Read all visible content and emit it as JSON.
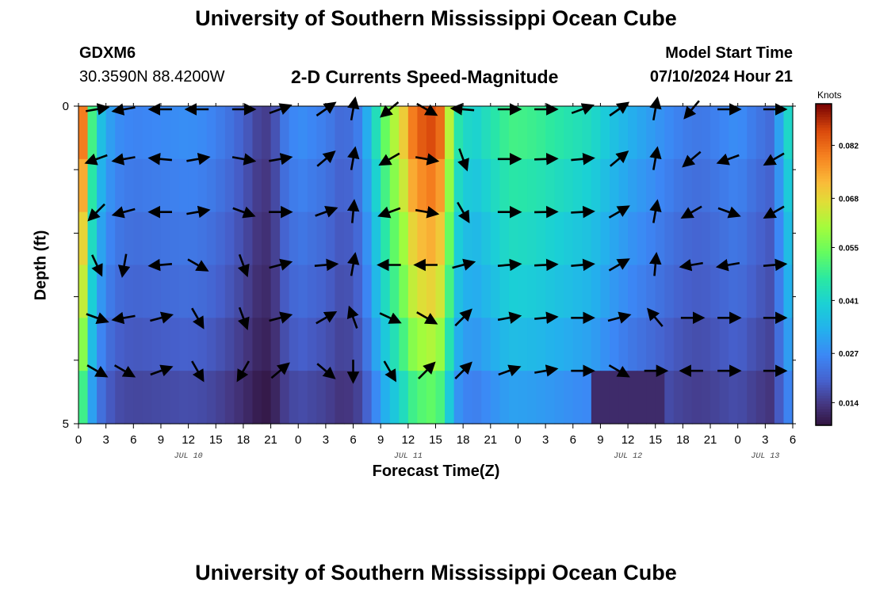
{
  "header": {
    "title": "University of Southern Mississippi Ocean Cube",
    "station_id": "GDXM6",
    "station_coords": "30.3590N  88.4200W",
    "product_title": "2-D Currents Speed-Magnitude",
    "model_start_label": "Model Start Time",
    "model_start_value": "07/10/2024 Hour 21"
  },
  "footer": {
    "title": "University of Southern Mississippi Ocean Cube"
  },
  "chart_data": {
    "type": "heatmap",
    "title": "2-D Currents Speed-Magnitude",
    "xlabel": "Forecast Time(Z)",
    "ylabel": "Depth (ft)",
    "colorbar_label": "Knots",
    "x_tick_labels": [
      "0",
      "3",
      "6",
      "9",
      "12",
      "15",
      "18",
      "21",
      "0",
      "3",
      "6",
      "9",
      "12",
      "15",
      "18",
      "21",
      "0",
      "3",
      "6",
      "9",
      "12",
      "15",
      "18",
      "21",
      "0",
      "3",
      "6"
    ],
    "date_labels": [
      {
        "label": "JUL 10",
        "hour": 12
      },
      {
        "label": "JUL 11",
        "hour": 36
      },
      {
        "label": "JUL 12",
        "hour": 60
      },
      {
        "label": "JUL 13",
        "hour": 75
      }
    ],
    "y_tick_labels": [
      "0",
      "5"
    ],
    "ylim": [
      0,
      5
    ],
    "xlim_hours": [
      0,
      78
    ],
    "colorbar_ticks": [
      0.014,
      0.027,
      0.041,
      0.055,
      0.068,
      0.082
    ],
    "colorbar_range": [
      0.008,
      0.093
    ],
    "depth_rows": 6,
    "speed_profile_hours": [
      0,
      0.5,
      1,
      1.5,
      2,
      3,
      4,
      6,
      9,
      12,
      14,
      16,
      18,
      19.5,
      20.5,
      21.5,
      22.5,
      24,
      27,
      29,
      30.5,
      31.5,
      32.5,
      33.5,
      34.5,
      35.5,
      36.5,
      37.5,
      38.5,
      39.5,
      40.5,
      41.5,
      43,
      45,
      47,
      48,
      50,
      52,
      54,
      56,
      58,
      60,
      62,
      64,
      66,
      68,
      70,
      72,
      74,
      75.5,
      76.5,
      77.5,
      78
    ],
    "speed_profile": [
      0.08,
      0.08,
      0.065,
      0.05,
      0.04,
      0.033,
      0.028,
      0.026,
      0.027,
      0.028,
      0.027,
      0.024,
      0.02,
      0.016,
      0.015,
      0.018,
      0.024,
      0.028,
      0.025,
      0.021,
      0.025,
      0.033,
      0.044,
      0.054,
      0.062,
      0.07,
      0.08,
      0.084,
      0.086,
      0.082,
      0.063,
      0.046,
      0.04,
      0.045,
      0.05,
      0.05,
      0.049,
      0.047,
      0.045,
      0.043,
      0.038,
      0.034,
      0.031,
      0.028,
      0.025,
      0.024,
      0.026,
      0.028,
      0.024,
      0.022,
      0.031,
      0.042,
      0.045
    ],
    "depth_factors": [
      1.0,
      0.93,
      0.86,
      0.8,
      0.72,
      0.62
    ],
    "vectors_note": "Black arrows show current direction at each 3-hour step for each depth row (not all hours drawn)",
    "vector_hours": [
      2,
      5,
      9,
      13,
      18,
      22,
      27,
      30,
      34,
      38,
      42,
      47,
      51,
      55,
      59,
      63,
      67,
      71,
      76
    ],
    "vector_angles_deg": [
      [
        10,
        190,
        180,
        180,
        0,
        20,
        35,
        80,
        220,
        330,
        175,
        0,
        0,
        20,
        35,
        80,
        230,
        0,
        0
      ],
      [
        200,
        190,
        175,
        10,
        350,
        10,
        40,
        80,
        210,
        350,
        290,
        0,
        2,
        5,
        40,
        80,
        220,
        200,
        210
      ],
      [
        225,
        195,
        180,
        10,
        340,
        0,
        20,
        85,
        200,
        350,
        300,
        0,
        1,
        3,
        30,
        80,
        210,
        340,
        210
      ],
      [
        295,
        260,
        185,
        330,
        290,
        15,
        5,
        80,
        180,
        180,
        15,
        5,
        3,
        5,
        30,
        85,
        190,
        190,
        5
      ],
      [
        340,
        190,
        15,
        300,
        290,
        15,
        30,
        110,
        335,
        330,
        45,
        10,
        5,
        0,
        15,
        130,
        0,
        0,
        0
      ],
      [
        330,
        330,
        20,
        300,
        240,
        40,
        320,
        270,
        300,
        45,
        45,
        20,
        10,
        0,
        330,
        0,
        180,
        0,
        0
      ]
    ]
  }
}
